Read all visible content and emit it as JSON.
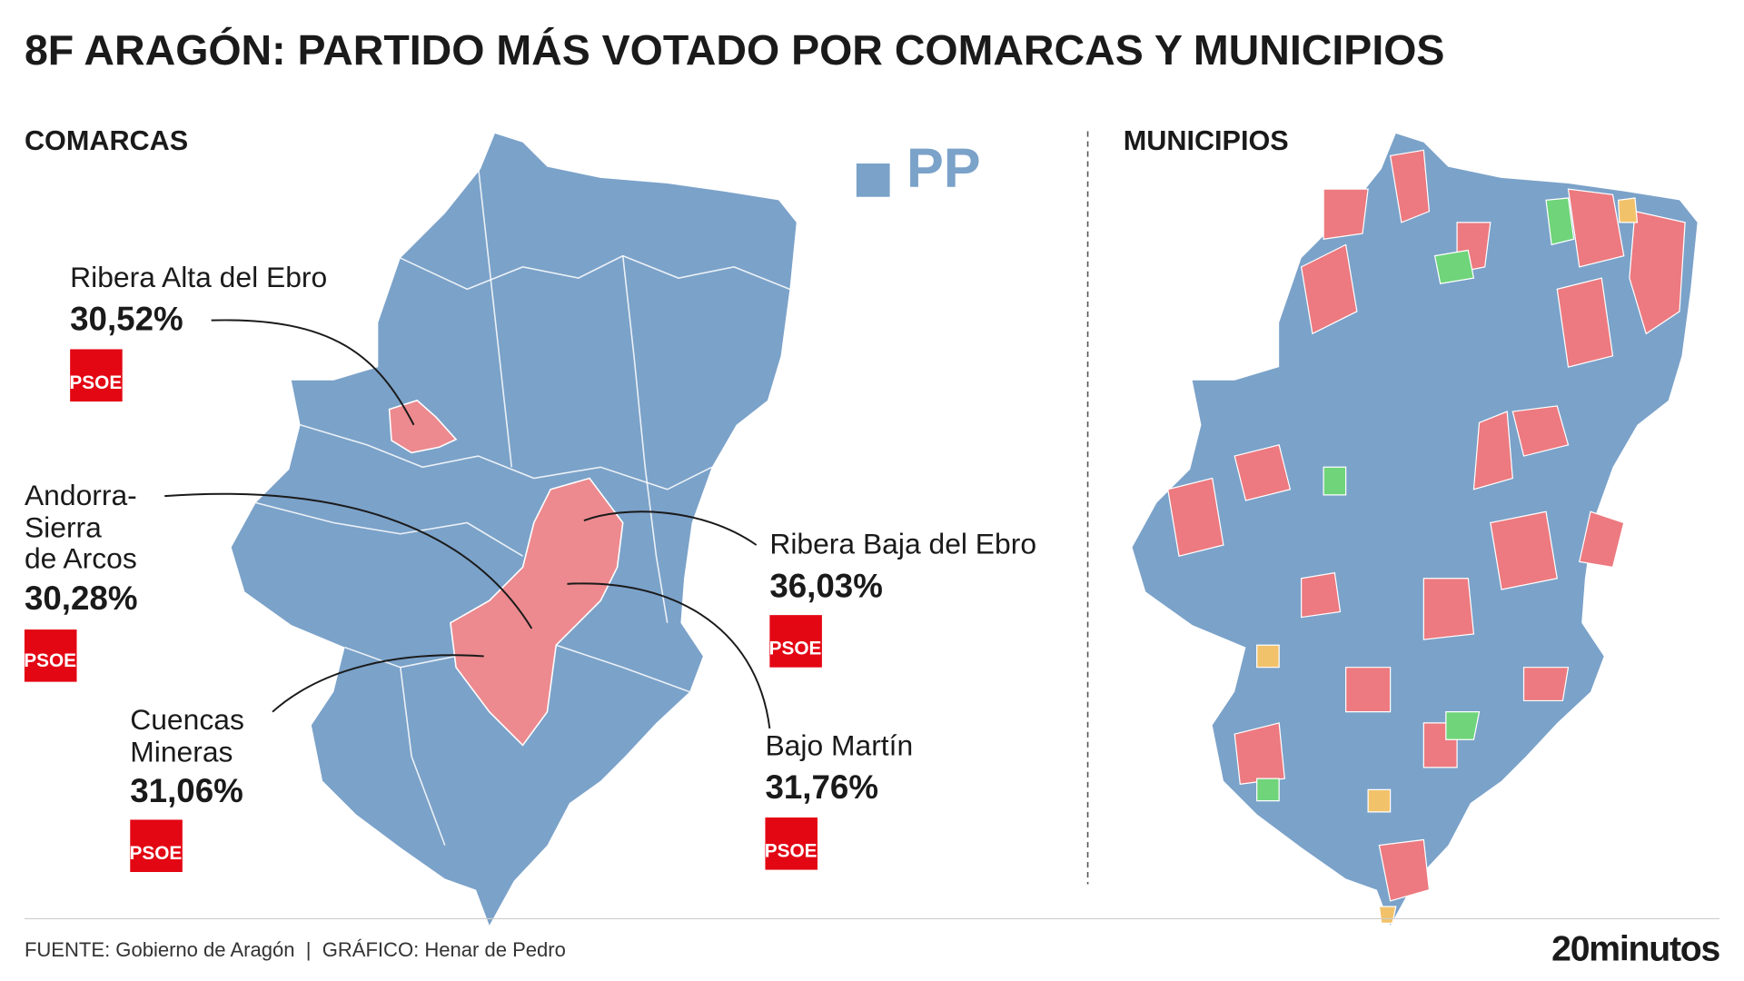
{
  "title": "8F ARAGÓN: PARTIDO MÁS VOTADO POR COMARCAS Y MUNICIPIOS",
  "comarcas": {
    "heading": "COMARCAS",
    "legend": {
      "party": "PP"
    },
    "callouts": [
      {
        "name_lines": [
          "Ribera Alta del Ebro"
        ],
        "percent": "30,52%",
        "party": "PSOE"
      },
      {
        "name_lines": [
          "Andorra-",
          "Sierra",
          "de Arcos"
        ],
        "percent": "30,28%",
        "party": "PSOE"
      },
      {
        "name_lines": [
          "Ribera Baja del Ebro"
        ],
        "percent": "36,03%",
        "party": "PSOE"
      },
      {
        "name_lines": [
          "Cuencas",
          "Mineras"
        ],
        "percent": "31,06%",
        "party": "PSOE"
      },
      {
        "name_lines": [
          "Bajo Martín"
        ],
        "percent": "31,76%",
        "party": "PSOE"
      }
    ]
  },
  "municipios": {
    "heading": "MUNICIPIOS"
  },
  "footer": {
    "source": "FUENTE: Gobierno de Aragón  |  GRÁFICO: Henar de Pedro",
    "brand": "20minutos"
  }
}
